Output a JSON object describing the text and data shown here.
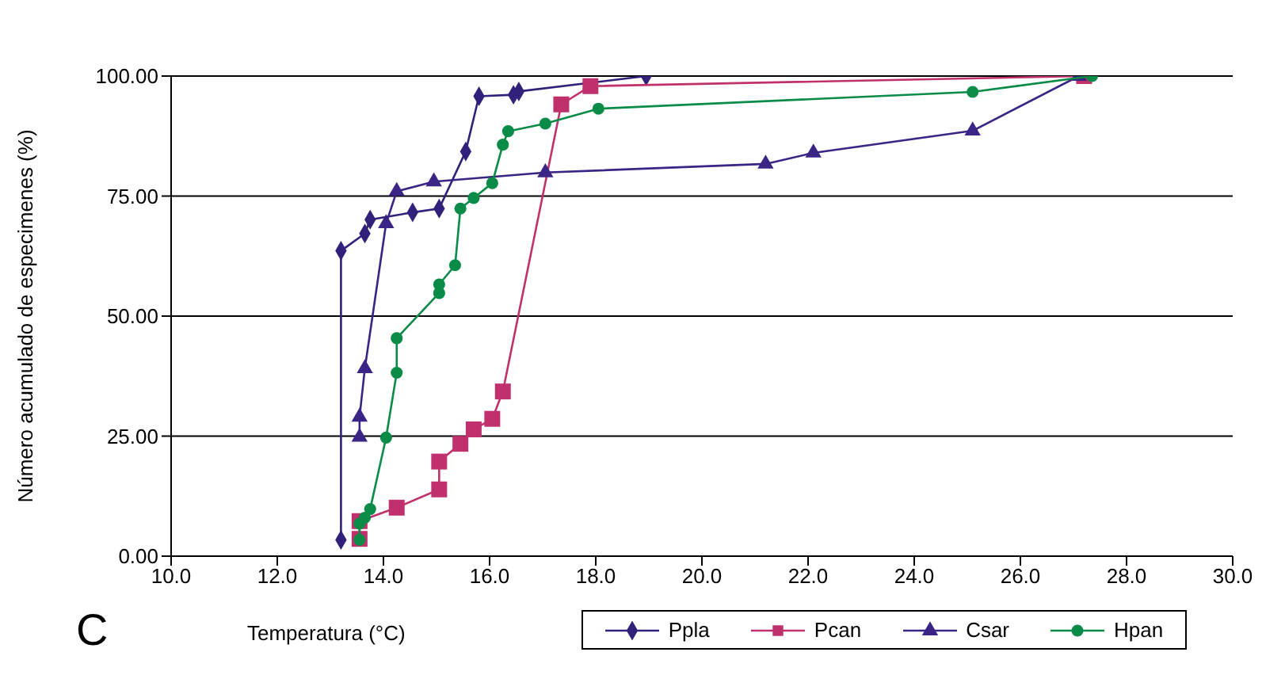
{
  "chart_data": {
    "type": "line",
    "xlabel": "Temperatura (°C)",
    "ylabel": "Número acumulado de especimenes (%)",
    "annotations": [
      "C"
    ],
    "xlim": [
      10,
      30
    ],
    "xticks": [
      {
        "value": 10,
        "label": "10.0"
      },
      {
        "value": 12,
        "label": "12.0"
      },
      {
        "value": 14,
        "label": "14.0"
      },
      {
        "value": 16,
        "label": "16.0"
      },
      {
        "value": 18,
        "label": "18.0"
      },
      {
        "value": 20,
        "label": "20.0"
      },
      {
        "value": 22,
        "label": "22.0"
      },
      {
        "value": 24,
        "label": "24.0"
      },
      {
        "value": 26,
        "label": "26.0"
      },
      {
        "value": 28,
        "label": "28.0"
      },
      {
        "value": 30,
        "label": "30.0"
      }
    ],
    "ylim": [
      0,
      100
    ],
    "yticks": [
      {
        "value": 0,
        "label": "0.00"
      },
      {
        "value": 25,
        "label": "25.00"
      },
      {
        "value": 50,
        "label": "50.00"
      },
      {
        "value": 75,
        "label": "75.00"
      },
      {
        "value": 100,
        "label": "100.00"
      }
    ],
    "grid": "y",
    "legend": "bottom",
    "line_style": "solid",
    "series": [
      {
        "name": "Ppla",
        "color": "#33207a",
        "marker": "diamond",
        "x": [
          13.2,
          13.2,
          13.65,
          13.75,
          14.55,
          15.05,
          15.55,
          15.8,
          16.45,
          16.55,
          18.95
        ],
        "values": [
          3.4,
          63.6,
          67.2,
          70.1,
          71.6,
          72.4,
          84.3,
          95.8,
          96.1,
          96.8,
          100
        ]
      },
      {
        "name": "Pcan",
        "color": "#c0306c",
        "marker": "square",
        "x": [
          13.55,
          13.55,
          14.25,
          15.05,
          15.05,
          15.45,
          15.7,
          16.05,
          16.25,
          17.35,
          17.9,
          27.2
        ],
        "values": [
          3.6,
          7.3,
          10.1,
          13.9,
          19.7,
          23.4,
          26.4,
          28.6,
          34.3,
          94.1,
          97.9,
          100
        ]
      },
      {
        "name": "Csar",
        "color": "#3a2486",
        "marker": "triangle",
        "x": [
          13.55,
          13.55,
          13.65,
          14.05,
          14.25,
          14.95,
          17.05,
          21.2,
          22.1,
          25.1,
          27.1
        ],
        "values": [
          24.8,
          29.0,
          39.1,
          69.3,
          76.0,
          78.0,
          79.9,
          81.7,
          84.0,
          88.6,
          100
        ]
      },
      {
        "name": "Hpan",
        "color": "#0a8c48",
        "marker": "circle",
        "x": [
          13.55,
          13.55,
          13.65,
          13.75,
          14.05,
          14.25,
          14.25,
          15.05,
          15.05,
          15.35,
          15.45,
          15.7,
          16.05,
          16.25,
          16.35,
          17.05,
          18.05,
          25.1,
          27.35
        ],
        "values": [
          3.4,
          6.8,
          8.0,
          9.8,
          24.7,
          38.2,
          45.4,
          54.8,
          56.6,
          60.6,
          72.4,
          74.6,
          77.7,
          85.7,
          88.5,
          90.1,
          93.2,
          96.7,
          100
        ]
      }
    ]
  }
}
